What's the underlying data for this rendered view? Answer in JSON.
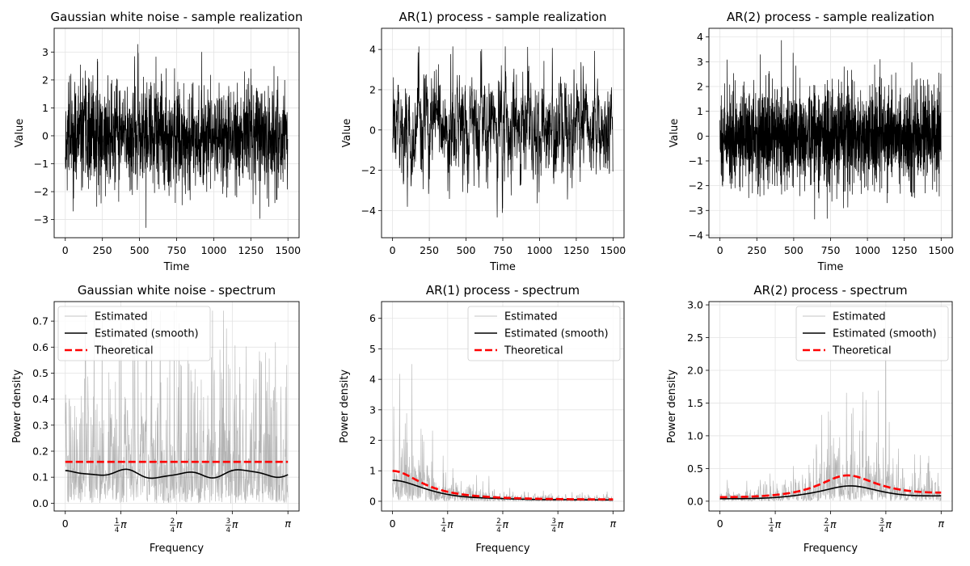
{
  "chart_data": [
    {
      "type": "line",
      "title": "Gaussian white noise - sample realization",
      "xlabel": "Time",
      "ylabel": "Value",
      "xlim": [
        -75,
        1575
      ],
      "ylim": [
        -3.65,
        3.85
      ],
      "xticks": [
        0,
        250,
        500,
        750,
        1000,
        1250,
        1500
      ],
      "xtick_labels": [
        "0",
        "250",
        "500",
        "750",
        "1000",
        "1250",
        "1500"
      ],
      "yticks": [
        -3,
        -2,
        -1,
        0,
        1,
        2,
        3
      ],
      "ytick_labels": [
        "−3",
        "−2",
        "−1",
        "0",
        "1",
        "2",
        "3"
      ],
      "grid": true,
      "series": [
        {
          "color": "#000000",
          "x_range": [
            0,
            1499
          ],
          "ar": [],
          "sigma": 0.95,
          "clip": [
            -3.3,
            3.48
          ],
          "seed": 11
        }
      ]
    },
    {
      "type": "line",
      "title": "AR(1) process - sample realization",
      "xlabel": "Time",
      "ylabel": "Value",
      "xlim": [
        -75,
        1575
      ],
      "ylim": [
        -5.35,
        5.05
      ],
      "xticks": [
        0,
        250,
        500,
        750,
        1000,
        1250,
        1500
      ],
      "xtick_labels": [
        "0",
        "250",
        "500",
        "750",
        "1000",
        "1250",
        "1500"
      ],
      "yticks": [
        -4,
        -2,
        0,
        2,
        4
      ],
      "ytick_labels": [
        "−4",
        "−2",
        "0",
        "2",
        "4"
      ],
      "grid": true,
      "series": [
        {
          "color": "#000000",
          "x_range": [
            0,
            1499
          ],
          "ar": [
            0.6
          ],
          "sigma": 1.0,
          "clip": [
            -4.8,
            4.15
          ],
          "seed": 23
        }
      ]
    },
    {
      "type": "line",
      "title": "AR(2) process - sample realization",
      "xlabel": "Time",
      "ylabel": "Value",
      "xlim": [
        -75,
        1575
      ],
      "ylim": [
        -4.1,
        4.35
      ],
      "xticks": [
        0,
        250,
        500,
        750,
        1000,
        1250,
        1500
      ],
      "xtick_labels": [
        "0",
        "250",
        "500",
        "750",
        "1000",
        "1250",
        "1500"
      ],
      "yticks": [
        -4,
        -3,
        -2,
        -1,
        0,
        1,
        2,
        3,
        4
      ],
      "ytick_labels": [
        "−4",
        "−3",
        "−2",
        "−1",
        "0",
        "1",
        "2",
        "3",
        "4"
      ],
      "grid": true,
      "series": [
        {
          "color": "#000000",
          "x_range": [
            0,
            1499
          ],
          "ar": [
            -0.25,
            -0.35
          ],
          "sigma": 1.0,
          "clip": [
            -3.9,
            3.98
          ],
          "seed": 37
        }
      ]
    },
    {
      "type": "line",
      "title": "Gaussian white noise - spectrum",
      "xlabel": "Frequency",
      "ylabel": "Power density",
      "xlim": [
        -0.157,
        3.299
      ],
      "ylim": [
        -0.03,
        0.775
      ],
      "xticks": [
        0,
        0.7854,
        1.5708,
        2.3562,
        3.1416
      ],
      "xtick_labels": [
        {
          "type": "int",
          "text": "0"
        },
        {
          "type": "frac",
          "num": "1",
          "den": "4",
          "suffix": "π"
        },
        {
          "type": "frac",
          "num": "2",
          "den": "4",
          "suffix": "π"
        },
        {
          "type": "frac",
          "num": "3",
          "den": "4",
          "suffix": "π"
        },
        {
          "type": "int",
          "text": "π"
        }
      ],
      "yticks": [
        0.0,
        0.1,
        0.2,
        0.3,
        0.4,
        0.5,
        0.6,
        0.7
      ],
      "ytick_labels": [
        "0.0",
        "0.1",
        "0.2",
        "0.3",
        "0.4",
        "0.5",
        "0.6",
        "0.7"
      ],
      "grid": true,
      "legend": {
        "position": "upper-left"
      },
      "series": [
        {
          "name": "Estimated",
          "color": "#9a9a9a",
          "kind": "periodogram",
          "ar": [],
          "sigma": 1.0,
          "clip": 0.74,
          "seed": 51
        },
        {
          "name": "Estimated (smooth)",
          "color": "#000000",
          "kind": "smooth",
          "ar": [],
          "sigma": 1.0,
          "seed": 52
        },
        {
          "name": "Theoretical",
          "color": "#ff0000",
          "kind": "theoretical",
          "ar": [],
          "sigma": 1.0,
          "dashed": true
        }
      ]
    },
    {
      "type": "line",
      "title": "AR(1) process - spectrum",
      "xlabel": "Frequency",
      "ylabel": "Power density",
      "xlim": [
        -0.157,
        3.299
      ],
      "ylim": [
        -0.32,
        6.55
      ],
      "xticks": [
        0,
        0.7854,
        1.5708,
        2.3562,
        3.1416
      ],
      "xtick_labels": [
        {
          "type": "int",
          "text": "0"
        },
        {
          "type": "frac",
          "num": "1",
          "den": "4",
          "suffix": "π"
        },
        {
          "type": "frac",
          "num": "2",
          "den": "4",
          "suffix": "π"
        },
        {
          "type": "frac",
          "num": "3",
          "den": "4",
          "suffix": "π"
        },
        {
          "type": "int",
          "text": "π"
        }
      ],
      "yticks": [
        0,
        1,
        2,
        3,
        4,
        5,
        6
      ],
      "ytick_labels": [
        "0",
        "1",
        "2",
        "3",
        "4",
        "5",
        "6"
      ],
      "grid": true,
      "legend": {
        "position": "upper-right"
      },
      "series": [
        {
          "name": "Estimated",
          "color": "#9a9a9a",
          "kind": "periodogram",
          "ar": [
            0.6
          ],
          "sigma": 1.0,
          "clip": 6.25,
          "seed": 61
        },
        {
          "name": "Estimated (smooth)",
          "color": "#000000",
          "kind": "smooth",
          "ar": [
            0.6
          ],
          "sigma": 1.0,
          "scale": 0.72,
          "seed": 62
        },
        {
          "name": "Theoretical",
          "color": "#ff0000",
          "kind": "theoretical",
          "ar": [
            0.6
          ],
          "sigma": 1.0,
          "dashed": true
        }
      ]
    },
    {
      "type": "line",
      "title": "AR(2) process - spectrum",
      "xlabel": "Frequency",
      "ylabel": "Power density",
      "xlim": [
        -0.157,
        3.299
      ],
      "ylim": [
        -0.15,
        3.05
      ],
      "xticks": [
        0,
        0.7854,
        1.5708,
        2.3562,
        3.1416
      ],
      "xtick_labels": [
        {
          "type": "int",
          "text": "0"
        },
        {
          "type": "frac",
          "num": "1",
          "den": "4",
          "suffix": "π"
        },
        {
          "type": "frac",
          "num": "2",
          "den": "4",
          "suffix": "π"
        },
        {
          "type": "frac",
          "num": "3",
          "den": "4",
          "suffix": "π"
        },
        {
          "type": "int",
          "text": "π"
        }
      ],
      "yticks": [
        0.0,
        0.5,
        1.0,
        1.5,
        2.0,
        2.5,
        3.0
      ],
      "ytick_labels": [
        "0.0",
        "0.5",
        "1.0",
        "1.5",
        "2.0",
        "2.5",
        "3.0"
      ],
      "grid": true,
      "legend": {
        "position": "upper-right"
      },
      "series": [
        {
          "name": "Estimated",
          "color": "#9a9a9a",
          "kind": "periodogram",
          "ar": [
            -0.25,
            -0.35
          ],
          "sigma": 1.0,
          "clip": 2.95,
          "seed": 71
        },
        {
          "name": "Estimated (smooth)",
          "color": "#000000",
          "kind": "smooth",
          "ar": [
            -0.25,
            -0.35
          ],
          "sigma": 1.0,
          "scale": 0.6,
          "seed": 72
        },
        {
          "name": "Theoretical",
          "color": "#ff0000",
          "kind": "theoretical",
          "ar": [
            -0.25,
            -0.35
          ],
          "sigma": 1.0,
          "dashed": true
        }
      ]
    }
  ]
}
